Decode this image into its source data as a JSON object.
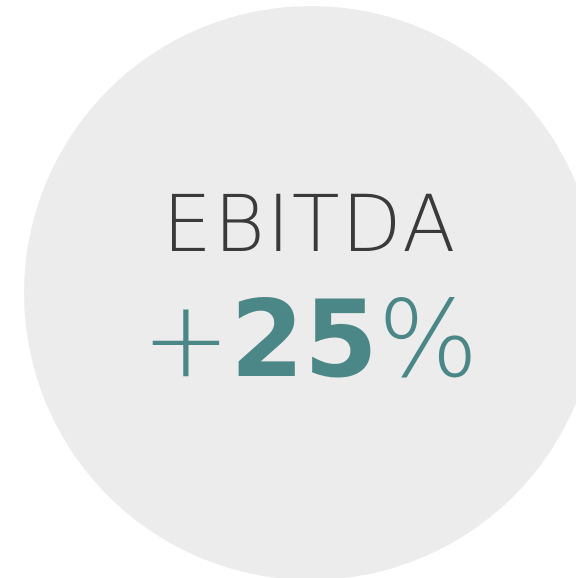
{
  "badge": {
    "label": "EBITDA",
    "value": {
      "sign": "+",
      "number": "25",
      "unit": "%"
    }
  }
}
